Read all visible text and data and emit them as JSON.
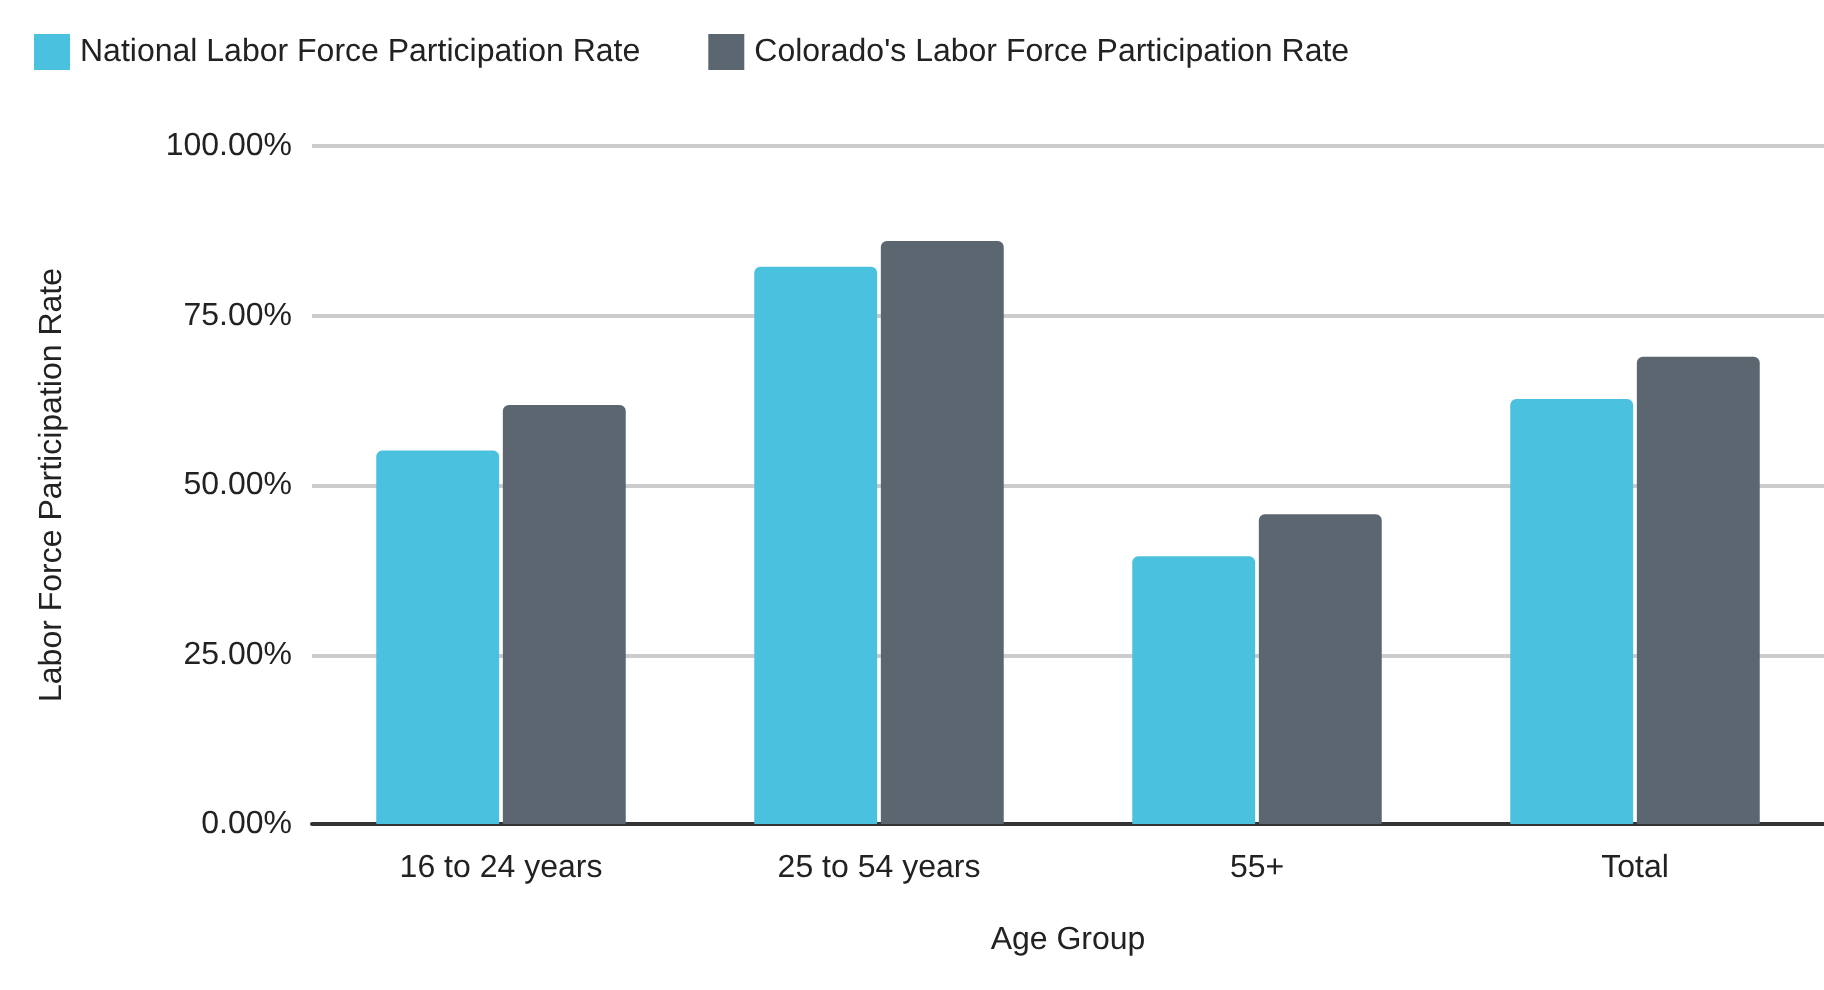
{
  "chart_data": {
    "type": "bar",
    "xlabel": "Age Group",
    "ylabel": "Labor Force Participation Rate",
    "categories": [
      "16 to 24 years",
      "25 to 54 years",
      "55+",
      "Total"
    ],
    "series": [
      {
        "name": "National Labor Force Participation Rate",
        "color": "#4bc1e0",
        "values": [
          55.1,
          82.2,
          39.5,
          62.7
        ]
      },
      {
        "name": "Colorado's Labor Force Participation Rate",
        "color": "#5c6670",
        "values": [
          61.8,
          86.0,
          45.7,
          68.9
        ]
      }
    ],
    "ylim": [
      0,
      100
    ],
    "yticks": [
      {
        "value": 0,
        "label": "0.00%"
      },
      {
        "value": 25,
        "label": "25.00%"
      },
      {
        "value": 50,
        "label": "50.00%"
      },
      {
        "value": 75,
        "label": "75.00%"
      },
      {
        "value": 100,
        "label": "100.00%"
      }
    ],
    "grid": "y",
    "legend": "top left"
  }
}
